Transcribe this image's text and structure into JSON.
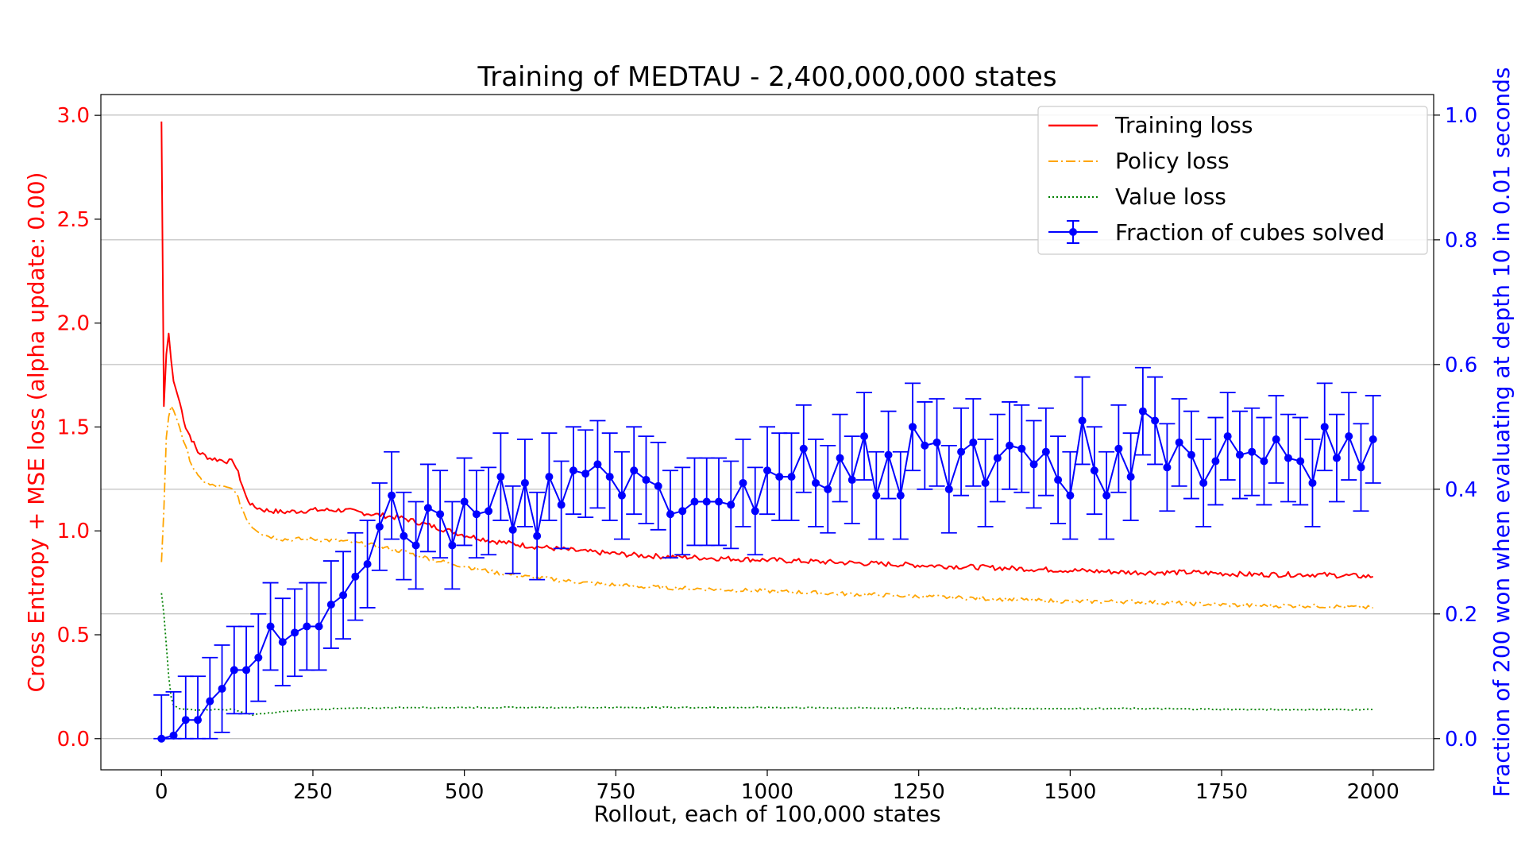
{
  "chart_data": {
    "type": "line",
    "title": "Training of MEDTAU - 2,400,000,000 states",
    "xlabel": "Rollout, each of 100,000 states",
    "ylabel_left": "Cross Entropy + MSE loss (alpha update: 0.00)",
    "ylabel_right": "Fraction of 200 won when evaluating at depth 10 in 0.01 seconds",
    "xlim": [
      -100,
      2100
    ],
    "ylim_left": [
      -0.15,
      3.1
    ],
    "ylim_right": [
      -0.05,
      1.033
    ],
    "x_ticks": [
      "0",
      "250",
      "500",
      "750",
      "1000",
      "1250",
      "1500",
      "1750",
      "2000"
    ],
    "x_tick_values": [
      0,
      250,
      500,
      750,
      1000,
      1250,
      1500,
      1750,
      2000
    ],
    "y_left_ticks": [
      "0.0",
      "0.5",
      "1.0",
      "1.5",
      "2.0",
      "2.5",
      "3.0"
    ],
    "y_left_tick_values": [
      0,
      0.5,
      1.0,
      1.5,
      2.0,
      2.5,
      3.0
    ],
    "y_right_ticks": [
      "0.0",
      "0.2",
      "0.4",
      "0.6",
      "0.8",
      "1.0"
    ],
    "y_right_tick_values": [
      0,
      0.2,
      0.4,
      0.6,
      0.8,
      1.0
    ],
    "grid": "horizontal (right axis)",
    "legend_position": "top-right",
    "colors": {
      "training": "#ff0000",
      "policy": "#ffa500",
      "value": "#008000",
      "fraction": "#0000ff",
      "left_axis": "#ff0000",
      "right_axis": "#0000ff"
    },
    "series": [
      {
        "name": "Training loss",
        "axis": "left",
        "style": "solid",
        "x": [
          0,
          2,
          4,
          8,
          12,
          16,
          20,
          30,
          40,
          50,
          60,
          80,
          100,
          120,
          130,
          140,
          150,
          170,
          200,
          250,
          300,
          350,
          400,
          450,
          500,
          550,
          600,
          700,
          800,
          900,
          1000,
          1100,
          1200,
          1300,
          1400,
          1500,
          1600,
          1700,
          1800,
          1900,
          2000
        ],
        "values": [
          2.97,
          2.3,
          1.6,
          1.85,
          1.95,
          1.82,
          1.72,
          1.62,
          1.5,
          1.44,
          1.38,
          1.35,
          1.34,
          1.33,
          1.25,
          1.16,
          1.12,
          1.1,
          1.09,
          1.1,
          1.1,
          1.08,
          1.06,
          1.02,
          0.98,
          0.95,
          0.93,
          0.9,
          0.88,
          0.87,
          0.86,
          0.85,
          0.84,
          0.83,
          0.82,
          0.81,
          0.8,
          0.8,
          0.79,
          0.79,
          0.78
        ]
      },
      {
        "name": "Policy loss",
        "axis": "left",
        "style": "dashdot",
        "x": [
          0,
          4,
          8,
          12,
          16,
          20,
          30,
          40,
          50,
          60,
          80,
          100,
          120,
          130,
          140,
          150,
          170,
          200,
          250,
          300,
          350,
          400,
          450,
          500,
          550,
          600,
          700,
          800,
          900,
          1000,
          1100,
          1200,
          1300,
          1400,
          1500,
          1600,
          1700,
          1800,
          1900,
          2000
        ],
        "values": [
          0.85,
          1.1,
          1.45,
          1.55,
          1.6,
          1.58,
          1.5,
          1.4,
          1.32,
          1.26,
          1.22,
          1.21,
          1.2,
          1.13,
          1.06,
          1.02,
          0.98,
          0.96,
          0.96,
          0.95,
          0.93,
          0.9,
          0.86,
          0.83,
          0.8,
          0.78,
          0.75,
          0.73,
          0.72,
          0.71,
          0.7,
          0.69,
          0.68,
          0.67,
          0.66,
          0.66,
          0.65,
          0.64,
          0.64,
          0.63
        ]
      },
      {
        "name": "Value loss",
        "axis": "left",
        "style": "dotted",
        "x": [
          0,
          4,
          8,
          12,
          16,
          20,
          25,
          30,
          40,
          60,
          80,
          100,
          120,
          130,
          140,
          150,
          170,
          200,
          250,
          300,
          400,
          500,
          700,
          1000,
          1300,
          1600,
          1800,
          2000
        ],
        "values": [
          0.7,
          0.6,
          0.45,
          0.3,
          0.2,
          0.16,
          0.15,
          0.145,
          0.14,
          0.14,
          0.14,
          0.14,
          0.14,
          0.13,
          0.12,
          0.115,
          0.12,
          0.13,
          0.14,
          0.145,
          0.15,
          0.15,
          0.15,
          0.15,
          0.145,
          0.145,
          0.14,
          0.14
        ]
      },
      {
        "name": "Fraction of cubes solved",
        "axis": "right",
        "style": "errorbar",
        "x": [
          0,
          20,
          40,
          60,
          80,
          100,
          120,
          140,
          160,
          180,
          200,
          220,
          240,
          260,
          280,
          300,
          320,
          340,
          360,
          380,
          400,
          420,
          440,
          460,
          480,
          500,
          520,
          540,
          560,
          580,
          600,
          620,
          640,
          660,
          680,
          700,
          720,
          740,
          760,
          780,
          800,
          820,
          840,
          860,
          880,
          900,
          920,
          940,
          960,
          980,
          1000,
          1020,
          1040,
          1060,
          1080,
          1100,
          1120,
          1140,
          1160,
          1180,
          1200,
          1220,
          1240,
          1260,
          1280,
          1300,
          1320,
          1340,
          1360,
          1380,
          1400,
          1420,
          1440,
          1460,
          1480,
          1500,
          1520,
          1540,
          1560,
          1580,
          1600,
          1620,
          1640,
          1660,
          1680,
          1700,
          1720,
          1740,
          1760,
          1780,
          1800,
          1820,
          1840,
          1860,
          1880,
          1900,
          1920,
          1940,
          1960,
          1980,
          2000
        ],
        "values": [
          0.0,
          0.005,
          0.03,
          0.03,
          0.06,
          0.08,
          0.11,
          0.11,
          0.13,
          0.18,
          0.155,
          0.17,
          0.18,
          0.18,
          0.215,
          0.23,
          0.26,
          0.28,
          0.34,
          0.39,
          0.325,
          0.31,
          0.37,
          0.36,
          0.31,
          0.38,
          0.36,
          0.365,
          0.42,
          0.335,
          0.41,
          0.325,
          0.42,
          0.375,
          0.43,
          0.425,
          0.44,
          0.42,
          0.39,
          0.43,
          0.415,
          0.405,
          0.36,
          0.365,
          0.38,
          0.38,
          0.38,
          0.375,
          0.41,
          0.365,
          0.43,
          0.42,
          0.42,
          0.465,
          0.41,
          0.4,
          0.45,
          0.415,
          0.485,
          0.39,
          0.455,
          0.39,
          0.5,
          0.47,
          0.475,
          0.4,
          0.46,
          0.475,
          0.41,
          0.45,
          0.47,
          0.465,
          0.44,
          0.46,
          0.415,
          0.39,
          0.51,
          0.43,
          0.39,
          0.465,
          0.42,
          0.525,
          0.51,
          0.435,
          0.475,
          0.455,
          0.41,
          0.445,
          0.485,
          0.455,
          0.46,
          0.445,
          0.48,
          0.45,
          0.445,
          0.41,
          0.5,
          0.45,
          0.485,
          0.435,
          0.48
        ],
        "error": 0.07
      }
    ]
  }
}
